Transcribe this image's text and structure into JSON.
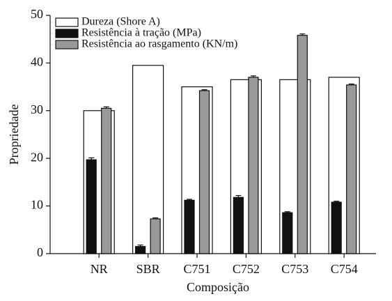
{
  "chart_data": {
    "type": "bar",
    "xlabel": "Composição",
    "ylabel": "Propriedade",
    "categories": [
      "NR",
      "SBR",
      "C751",
      "C752",
      "C753",
      "C754"
    ],
    "series": [
      {
        "name": "Dureza (Shore A)",
        "color": "#ffffff",
        "values": [
          30,
          39.5,
          35,
          36.5,
          36.5,
          37
        ]
      },
      {
        "name": "Resistência à tração (MPa)",
        "color": "#111111",
        "values": [
          19.7,
          1.5,
          11.2,
          11.8,
          8.6,
          10.8
        ],
        "errors": [
          0.4,
          0.3,
          0.2,
          0.4,
          0.2,
          0.2
        ]
      },
      {
        "name": "Resistência ao rasgamento (KN/m)",
        "color": "#999999",
        "values": [
          30.5,
          7.3,
          34.2,
          37.0,
          45.8,
          35.4
        ],
        "errors": [
          0.3,
          0.2,
          0.2,
          0.3,
          0.3,
          0.2
        ]
      }
    ],
    "ylim": [
      0,
      50
    ],
    "yticks": [
      0,
      10,
      20,
      30,
      40,
      50
    ],
    "legend": "upper left"
  }
}
